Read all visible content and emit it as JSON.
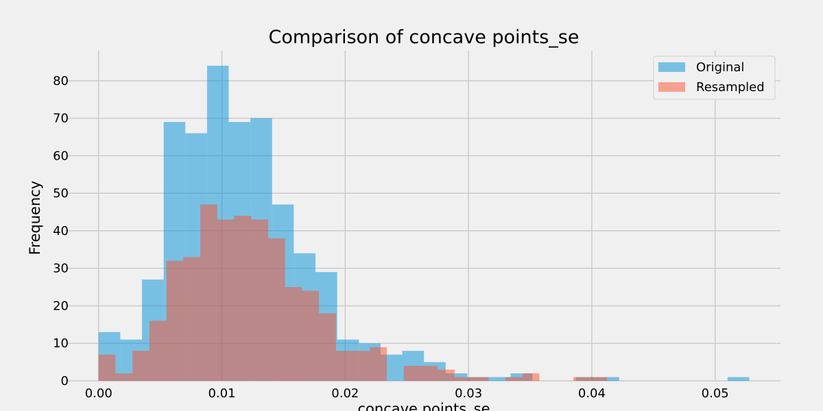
{
  "chart_data": {
    "type": "bar",
    "title": "Comparison of concave points_se",
    "xlabel": "concave points_se",
    "ylabel": "Frequency",
    "xlim": [
      -0.0026,
      0.0553
    ],
    "ylim": [
      0,
      88
    ],
    "grid": true,
    "legend_position": "top-right",
    "x_ticks": [
      "0.00",
      "0.01",
      "0.02",
      "0.03",
      "0.04",
      "0.05"
    ],
    "x_tick_values": [
      0.0,
      0.01,
      0.02,
      0.03,
      0.04,
      0.05
    ],
    "y_ticks": [
      "0",
      "10",
      "20",
      "30",
      "40",
      "50",
      "60",
      "70",
      "80"
    ],
    "y_tick_values": [
      0,
      10,
      20,
      30,
      40,
      50,
      60,
      70,
      80
    ],
    "series": [
      {
        "name": "Original",
        "color": "#008fd5",
        "opacity": 0.5,
        "bin_edges": [
          0.0,
          0.001759,
          0.003518,
          0.005277,
          0.007036,
          0.008795,
          0.010554,
          0.012313,
          0.014072,
          0.015831,
          0.01759,
          0.019349,
          0.021108,
          0.022867,
          0.024626,
          0.026385,
          0.028144,
          0.029903,
          0.031662,
          0.033421,
          0.03518,
          0.036939,
          0.038698,
          0.040457,
          0.042216,
          0.043975,
          0.045734,
          0.047493,
          0.049252,
          0.051011,
          0.05277
        ],
        "values": [
          13,
          11,
          27,
          69,
          66,
          84,
          69,
          70,
          47,
          34,
          29,
          11,
          10,
          7,
          8,
          5,
          2,
          1,
          1,
          2,
          0,
          0,
          1,
          1,
          0,
          0,
          0,
          0,
          0,
          1
        ]
      },
      {
        "name": "Resampled",
        "color": "#fc4f30",
        "opacity": 0.5,
        "bin_edges": [
          0.0,
          0.001375,
          0.00275,
          0.004125,
          0.0055,
          0.006875,
          0.00825,
          0.009625,
          0.011,
          0.012375,
          0.01375,
          0.015125,
          0.0165,
          0.017875,
          0.01925,
          0.020625,
          0.022,
          0.023375,
          0.02475,
          0.026125,
          0.0275,
          0.028875,
          0.03025,
          0.031625,
          0.033,
          0.034375,
          0.03575,
          0.037125,
          0.0385,
          0.039875,
          0.04125
        ],
        "values": [
          7,
          2,
          8,
          16,
          32,
          33,
          47,
          43,
          44,
          43,
          38,
          25,
          24,
          18,
          8,
          8,
          9,
          0,
          4,
          4,
          3,
          1,
          1,
          0,
          1,
          2,
          0,
          0,
          1,
          1
        ]
      }
    ]
  }
}
